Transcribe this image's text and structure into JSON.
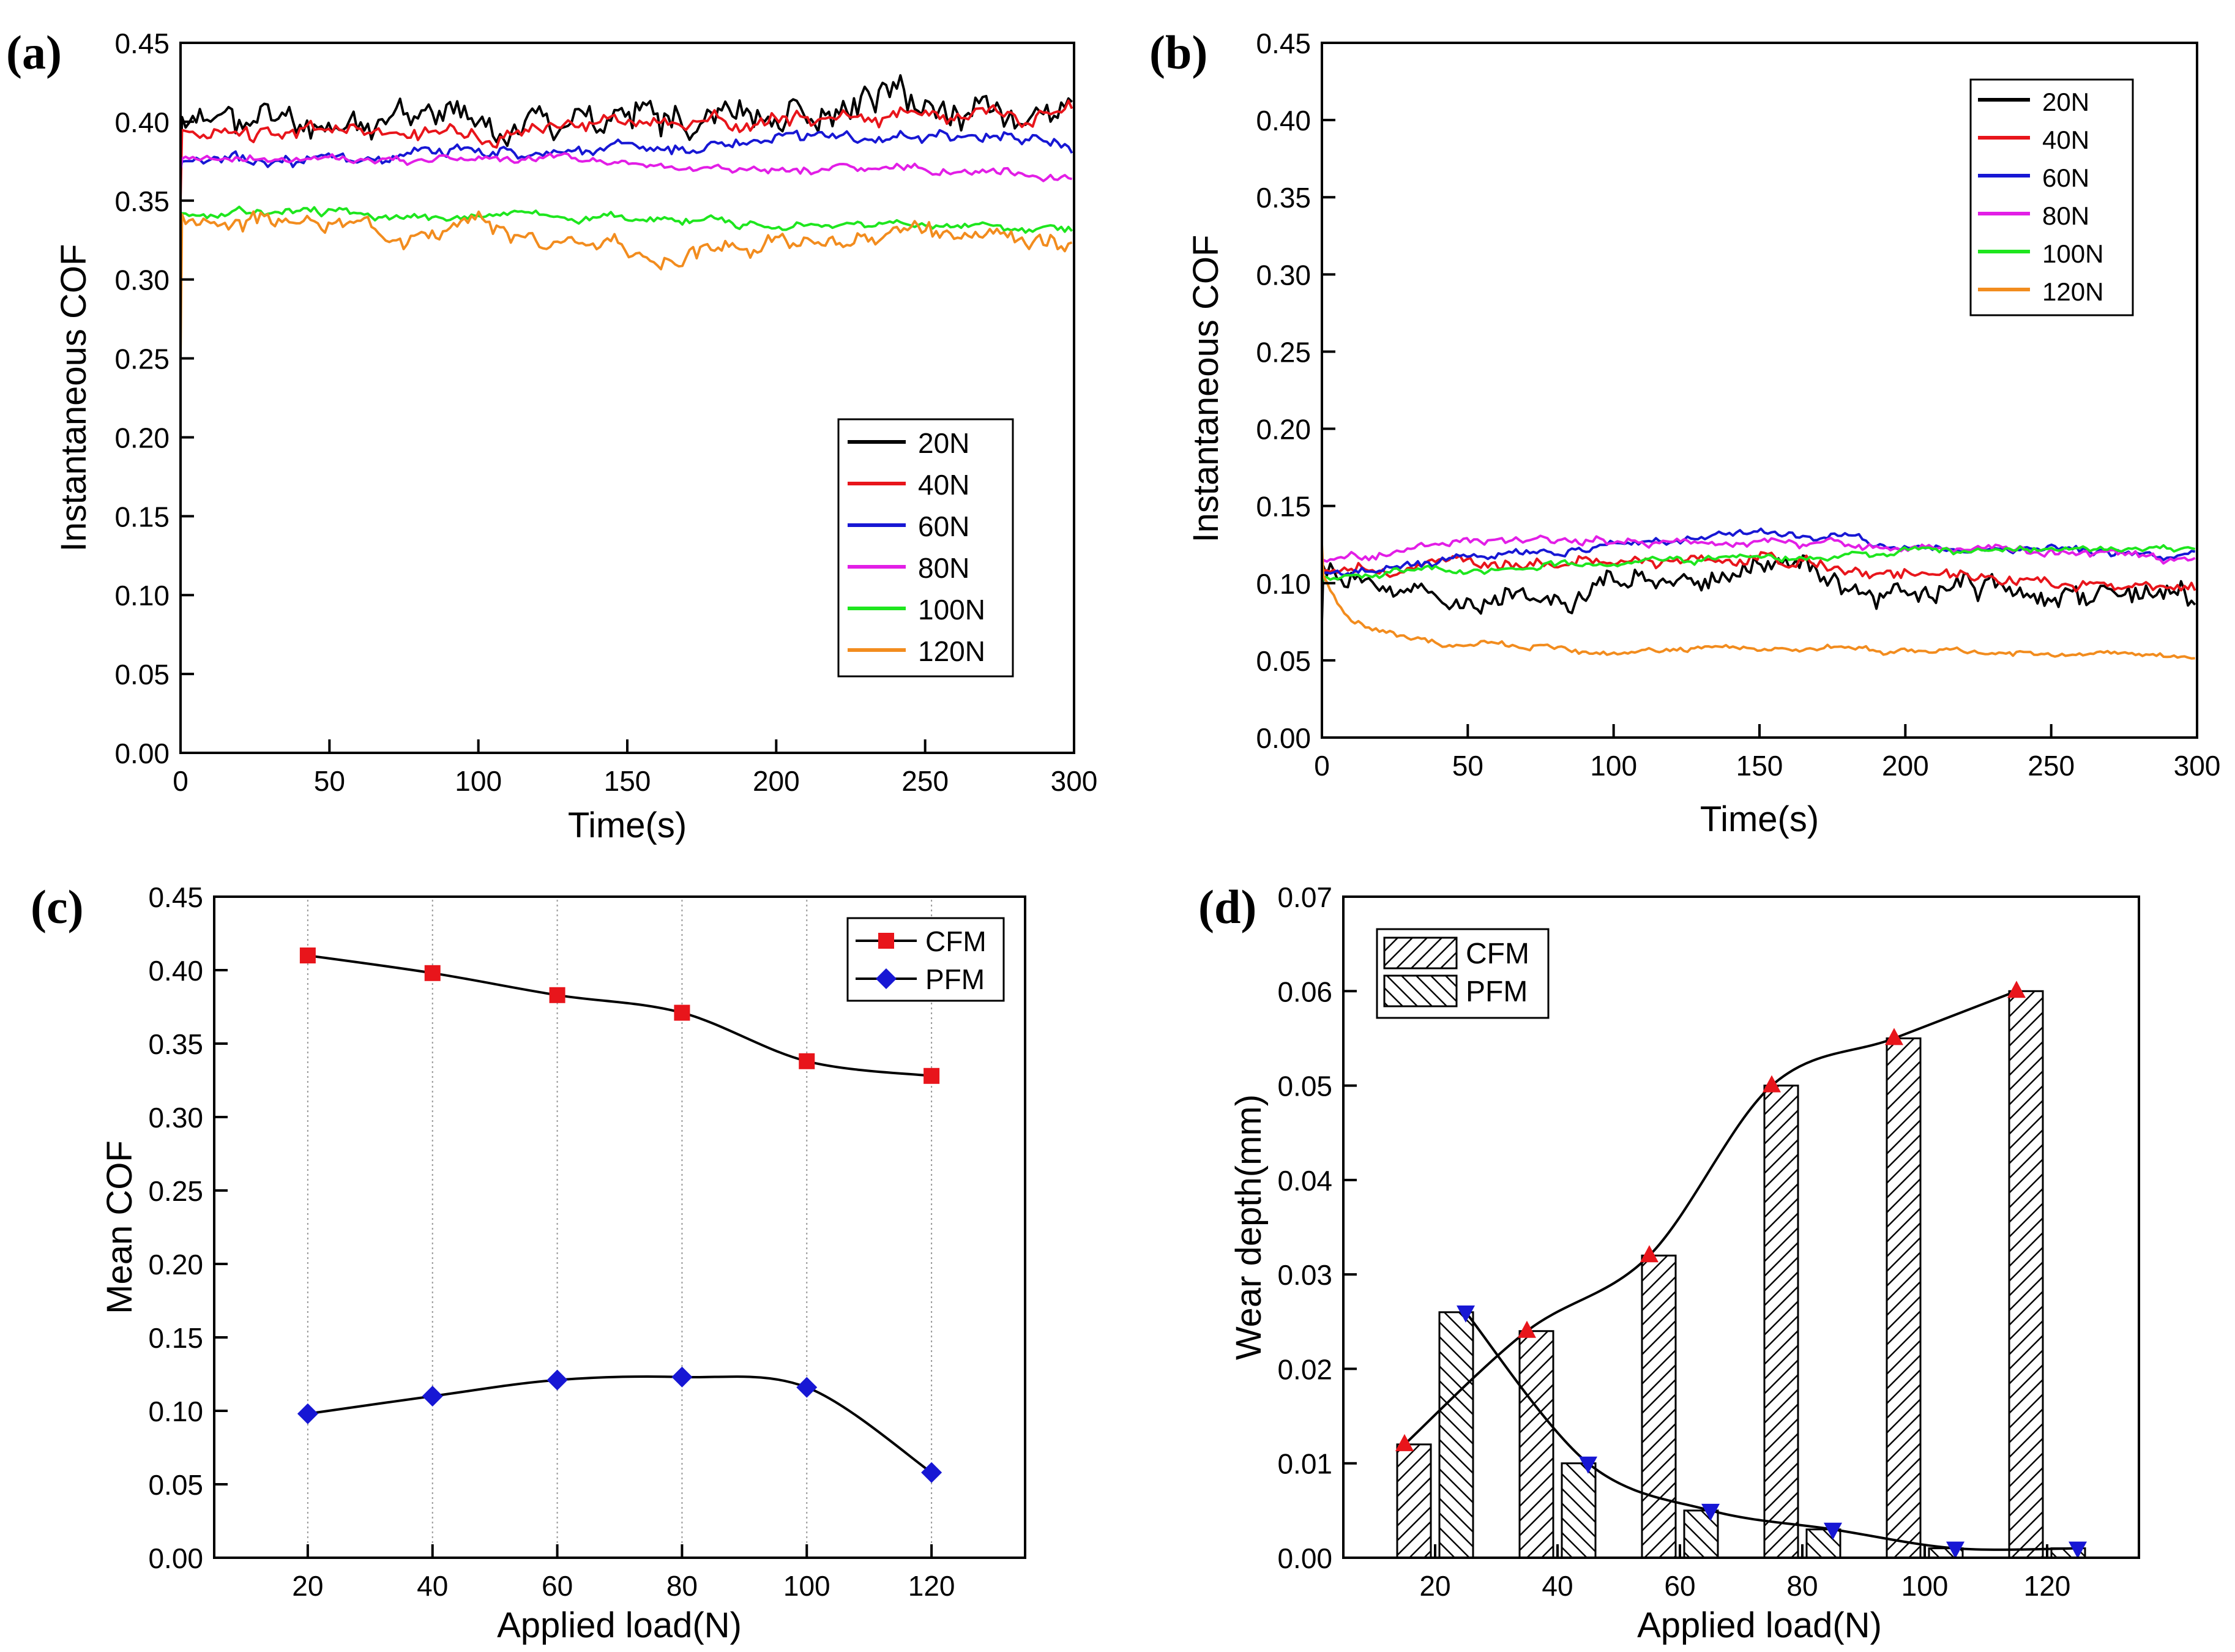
{
  "figure": {
    "colors": {
      "20N": "#000000",
      "40N": "#e8151b",
      "60N": "#1717d4",
      "80N": "#e21ee6",
      "100N": "#1ee61e",
      "120N": "#f28c1e",
      "cfm_marker": "#e8151b",
      "pfm_marker": "#1717d4"
    }
  },
  "chart_data": [
    {
      "id": "a",
      "panel_label": "(a)",
      "type": "line",
      "title": "",
      "xlabel": "Time(s)",
      "ylabel": "Instantaneous COF",
      "xlim": [
        0,
        300
      ],
      "ylim": [
        0,
        0.45
      ],
      "xticks": [
        "0",
        "50",
        "100",
        "150",
        "200",
        "250",
        "300"
      ],
      "yticks": [
        "0.00",
        "0.05",
        "0.10",
        "0.15",
        "0.20",
        "0.25",
        "0.30",
        "0.35",
        "0.40",
        "0.45"
      ],
      "legend": "bottom-right",
      "series": [
        {
          "name": "20N",
          "color": "#000000",
          "start": 0.36,
          "mean": 0.408,
          "noise": 0.008,
          "seed": 11,
          "keypoints": [
            [
              0,
              0.4
            ],
            [
              300,
              0.41
            ]
          ]
        },
        {
          "name": "40N",
          "color": "#e8151b",
          "start": 0.35,
          "mean": 0.398,
          "noise": 0.004,
          "seed": 23,
          "keypoints": [
            [
              0,
              0.39
            ],
            [
              100,
              0.395
            ],
            [
              200,
              0.403
            ],
            [
              300,
              0.408
            ]
          ]
        },
        {
          "name": "60N",
          "color": "#1717d4",
          "start": 0.37,
          "mean": 0.383,
          "noise": 0.003,
          "seed": 37,
          "keypoints": [
            [
              0,
              0.372
            ],
            [
              100,
              0.382
            ],
            [
              200,
              0.388
            ],
            [
              290,
              0.391
            ],
            [
              300,
              0.382
            ]
          ]
        },
        {
          "name": "80N",
          "color": "#e21ee6",
          "start": 0.37,
          "mean": 0.371,
          "noise": 0.002,
          "seed": 41,
          "keypoints": [
            [
              0,
              0.376
            ],
            [
              100,
              0.376
            ],
            [
              200,
              0.369
            ],
            [
              300,
              0.366
            ]
          ]
        },
        {
          "name": "100N",
          "color": "#1ee61e",
          "start": 0.34,
          "mean": 0.338,
          "noise": 0.002,
          "seed": 53,
          "keypoints": [
            [
              0,
              0.343
            ],
            [
              100,
              0.341
            ],
            [
              200,
              0.336
            ],
            [
              300,
              0.333
            ]
          ]
        },
        {
          "name": "120N",
          "color": "#f28c1e",
          "start": 0.25,
          "mean": 0.328,
          "noise": 0.004,
          "seed": 67,
          "keypoints": [
            [
              0,
              0.338
            ],
            [
              100,
              0.333
            ],
            [
              160,
              0.315
            ],
            [
              200,
              0.325
            ],
            [
              300,
              0.322
            ]
          ]
        }
      ]
    },
    {
      "id": "b",
      "panel_label": "(b)",
      "type": "line",
      "title": "",
      "xlabel": "Time(s)",
      "ylabel": "Instantaneous COF",
      "xlim": [
        0,
        300
      ],
      "ylim": [
        0,
        0.45
      ],
      "xticks": [
        "0",
        "50",
        "100",
        "150",
        "200",
        "250",
        "300"
      ],
      "yticks": [
        "0.00",
        "0.05",
        "0.10",
        "0.15",
        "0.20",
        "0.25",
        "0.30",
        "0.35",
        "0.40",
        "0.45"
      ],
      "legend": "top-right",
      "series": [
        {
          "name": "20N",
          "color": "#000000",
          "start": 0.075,
          "mean": 0.098,
          "noise": 0.006,
          "seed": 71,
          "keypoints": [
            [
              0,
              0.12
            ],
            [
              20,
              0.09
            ],
            [
              60,
              0.088
            ],
            [
              100,
              0.098
            ],
            [
              150,
              0.118
            ],
            [
              200,
              0.095
            ],
            [
              260,
              0.09
            ],
            [
              300,
              0.095
            ]
          ]
        },
        {
          "name": "40N",
          "color": "#e8151b",
          "start": 0.1,
          "mean": 0.11,
          "noise": 0.003,
          "seed": 83,
          "keypoints": [
            [
              0,
              0.11
            ],
            [
              100,
              0.115
            ],
            [
              150,
              0.115
            ],
            [
              200,
              0.105
            ],
            [
              250,
              0.098
            ],
            [
              300,
              0.097
            ]
          ]
        },
        {
          "name": "60N",
          "color": "#1717d4",
          "start": 0.1,
          "mean": 0.121,
          "noise": 0.002,
          "seed": 97,
          "keypoints": [
            [
              0,
              0.105
            ],
            [
              50,
              0.118
            ],
            [
              100,
              0.125
            ],
            [
              150,
              0.132
            ],
            [
              200,
              0.123
            ],
            [
              300,
              0.118
            ]
          ]
        },
        {
          "name": "80N",
          "color": "#e21ee6",
          "start": 0.11,
          "mean": 0.123,
          "noise": 0.002,
          "seed": 101,
          "keypoints": [
            [
              0,
              0.115
            ],
            [
              50,
              0.127
            ],
            [
              100,
              0.127
            ],
            [
              200,
              0.125
            ],
            [
              300,
              0.115
            ]
          ]
        },
        {
          "name": "100N",
          "color": "#1ee61e",
          "start": 0.1,
          "mean": 0.115,
          "noise": 0.0015,
          "seed": 113,
          "keypoints": [
            [
              0,
              0.105
            ],
            [
              100,
              0.112
            ],
            [
              200,
              0.12
            ],
            [
              300,
              0.122
            ]
          ]
        },
        {
          "name": "120N",
          "color": "#f28c1e",
          "start": 0.125,
          "mean": 0.057,
          "noise": 0.0015,
          "seed": 127,
          "keypoints": [
            [
              0,
              0.105
            ],
            [
              10,
              0.075
            ],
            [
              30,
              0.063
            ],
            [
              80,
              0.057
            ],
            [
              150,
              0.057
            ],
            [
              300,
              0.054
            ]
          ]
        }
      ]
    },
    {
      "id": "c",
      "panel_label": "(c)",
      "type": "scatter",
      "title": "",
      "xlabel": "Applied load(N)",
      "ylabel": "Mean COF",
      "xlim": [
        5,
        135
      ],
      "ylim": [
        0,
        0.45
      ],
      "xticks": [
        "20",
        "40",
        "60",
        "80",
        "100",
        "120"
      ],
      "yticks": [
        "0.00",
        "0.05",
        "0.10",
        "0.15",
        "0.20",
        "0.25",
        "0.30",
        "0.35",
        "0.40",
        "0.45"
      ],
      "grid": "vertical dotted at x ticks",
      "legend": "top-right",
      "x": [
        20,
        40,
        60,
        80,
        100,
        120
      ],
      "series": [
        {
          "name": "CFM",
          "marker": "square",
          "color": "#e8151b",
          "values": [
            0.41,
            0.398,
            0.383,
            0.371,
            0.338,
            0.328
          ]
        },
        {
          "name": "PFM",
          "marker": "diamond",
          "color": "#1717d4",
          "values": [
            0.098,
            0.11,
            0.121,
            0.123,
            0.116,
            0.058
          ]
        }
      ]
    },
    {
      "id": "d",
      "panel_label": "(d)",
      "type": "bar",
      "title": "",
      "xlabel": "Applied load(N)",
      "ylabel": "Wear depth(mm)",
      "xlim": [
        5,
        135
      ],
      "ylim": [
        0,
        0.07
      ],
      "xticks": [
        "20",
        "40",
        "60",
        "80",
        "100",
        "120"
      ],
      "yticks": [
        "0.00",
        "0.01",
        "0.02",
        "0.03",
        "0.04",
        "0.05",
        "0.06",
        "0.07"
      ],
      "legend": "top-left",
      "categories": [
        "20",
        "40",
        "60",
        "80",
        "100",
        "120"
      ],
      "series": [
        {
          "name": "CFM",
          "hatch": "forward",
          "marker": "triangle-up",
          "marker_color": "#e8151b",
          "values": [
            0.012,
            0.024,
            0.032,
            0.05,
            0.055,
            0.06
          ]
        },
        {
          "name": "PFM",
          "hatch": "backward",
          "marker": "triangle-down",
          "marker_color": "#1717d4",
          "values": [
            0.026,
            0.01,
            0.005,
            0.003,
            0.001,
            0.001
          ]
        }
      ]
    }
  ]
}
